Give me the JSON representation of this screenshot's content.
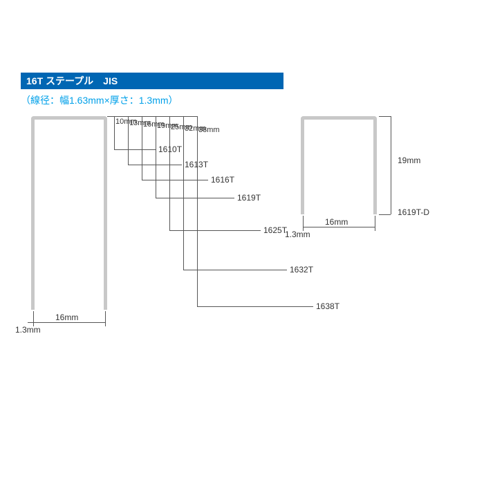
{
  "title": "16T ステープル　JIS",
  "title_bg": "#0066b3",
  "subtitle": "（線径：幅1.63mm×厚さ：1.3mm）",
  "subtitle_color": "#00a0e9",
  "width_label": "16mm",
  "thickness_label": "1.3mm",
  "variants": [
    {
      "code": "1610T",
      "length": "10mm"
    },
    {
      "code": "1613T",
      "length": "13mm"
    },
    {
      "code": "1616T",
      "length": "16mm"
    },
    {
      "code": "1619T",
      "length": "19mm"
    },
    {
      "code": "1625T",
      "length": "25mm"
    },
    {
      "code": "1632T",
      "length": "32mm"
    },
    {
      "code": "1638T",
      "length": "38mm"
    }
  ],
  "small": {
    "code": "1619T-D",
    "length": "19mm",
    "width": "16mm",
    "thickness": "1.3mm"
  },
  "colors": {
    "staple": "#c8c8c8",
    "line": "#555555",
    "text": "#333333"
  }
}
